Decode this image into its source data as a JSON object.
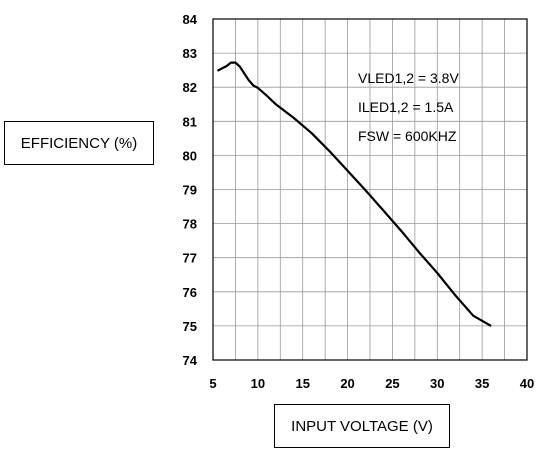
{
  "chart_data": {
    "type": "line",
    "title": "",
    "xlabel": "INPUT VOLTAGE (V)",
    "ylabel": "EFFICIENCY (%)",
    "xlim": [
      5,
      40
    ],
    "ylim": [
      74,
      84
    ],
    "x_ticks": [
      5,
      10,
      15,
      20,
      25,
      30,
      35,
      40
    ],
    "y_ticks": [
      74,
      75,
      76,
      77,
      78,
      79,
      80,
      81,
      82,
      83,
      84
    ],
    "x_minor_gridlines": [
      7.5,
      12.5,
      17.5,
      22.5,
      27.5,
      32.5,
      37.5
    ],
    "grid": true,
    "annotations": [
      "VLED1,2 = 3.8V",
      "ILED1,2 = 1.5A",
      "FSW = 600KHZ"
    ],
    "series": [
      {
        "color": "#000000",
        "x": [
          5.5,
          6.0,
          6.5,
          7.0,
          7.5,
          8.0,
          8.5,
          9.0,
          9.5,
          10.0,
          11.0,
          12.0,
          14.0,
          16.0,
          18.0,
          20.0,
          22.0,
          24.0,
          26.0,
          28.0,
          30.0,
          32.0,
          34.0,
          36.0
        ],
        "values": [
          82.48,
          82.55,
          82.62,
          82.72,
          82.72,
          82.6,
          82.4,
          82.2,
          82.05,
          81.98,
          81.75,
          81.5,
          81.1,
          80.65,
          80.12,
          79.55,
          78.98,
          78.38,
          77.78,
          77.15,
          76.55,
          75.9,
          75.3,
          75.0
        ]
      }
    ]
  }
}
